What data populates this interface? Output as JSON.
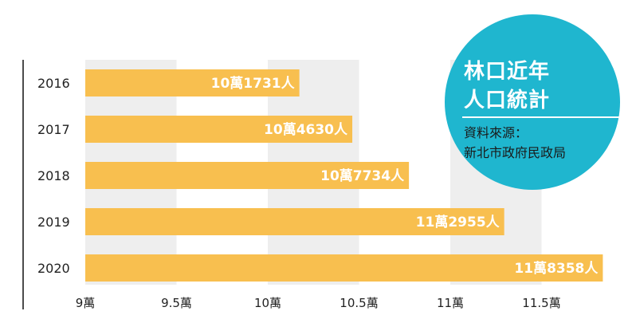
{
  "chart_data": {
    "type": "bar",
    "orientation": "horizontal",
    "categories": [
      "2016",
      "2017",
      "2018",
      "2019",
      "2020"
    ],
    "values": [
      101731,
      104630,
      107734,
      112955,
      118358
    ],
    "data_labels": [
      "10萬1731人",
      "10萬4630人",
      "10萬7734人",
      "11萬2955人",
      "11萬8358人"
    ],
    "x_ticks": [
      {
        "value": 90000,
        "label": "9萬"
      },
      {
        "value": 95000,
        "label": "9.5萬"
      },
      {
        "value": 100000,
        "label": "10萬"
      },
      {
        "value": 105000,
        "label": "10.5萬"
      },
      {
        "value": 110000,
        "label": "11萬"
      },
      {
        "value": 115000,
        "label": "11.5萬"
      }
    ],
    "xlim": [
      90000,
      118500
    ],
    "bar_color": "#f8bf4f",
    "band_color": "#eeeeee"
  },
  "badge": {
    "title_lines": [
      "林口近年",
      "人口統計"
    ],
    "source_lines": [
      "資料來源：",
      "新北市政府民政局"
    ],
    "color": "#1fb6cf"
  }
}
